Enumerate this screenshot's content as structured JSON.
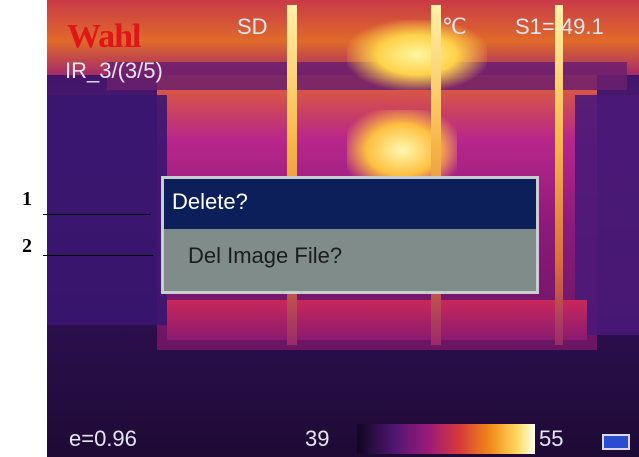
{
  "overlay": {
    "brand": "Wahl",
    "storage_mode": "SD",
    "unit": "℃",
    "spot_reading": "S1= 49.1",
    "file_index": "IR_3/(3/5)",
    "emissivity": "e=0.96",
    "scale_min": "39",
    "scale_max": "55"
  },
  "dialog": {
    "title": "Delete?",
    "message": "Del Image File?"
  },
  "callouts": [
    "1",
    "2"
  ],
  "colors": {
    "dialog_title_bg": "#0d1f5a",
    "dialog_body_bg": "#7f8c8a",
    "brand": "#e0151b"
  }
}
